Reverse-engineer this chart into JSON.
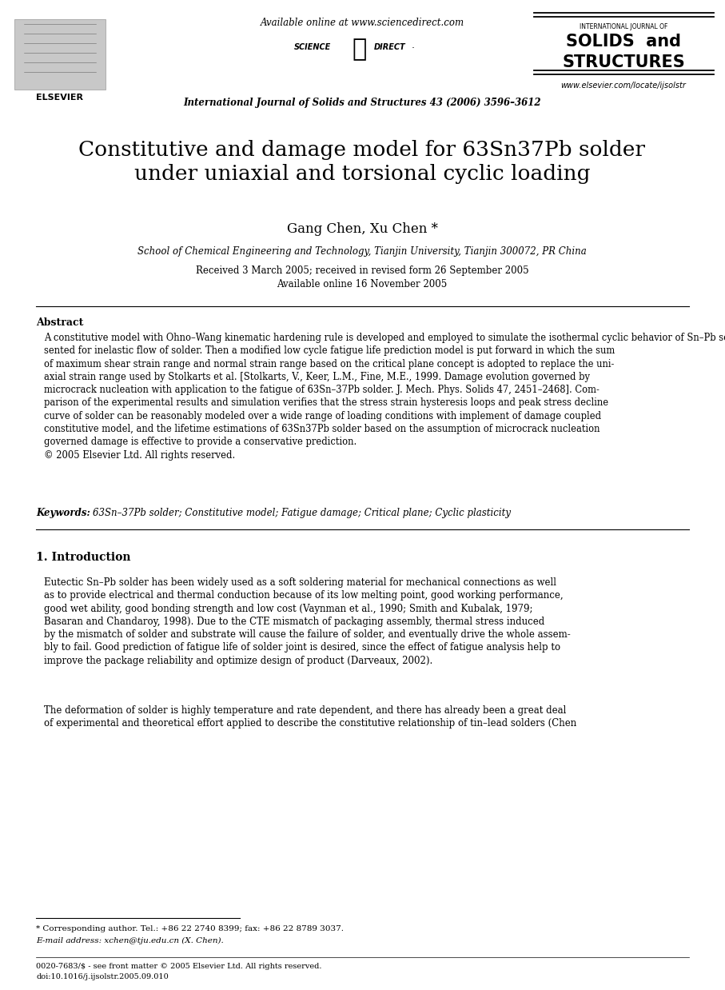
{
  "page_bg": "#ffffff",
  "header": {
    "available_online": "Available online at www.sciencedirect.com",
    "journal_name_center": "International Journal of Solids and Structures 43 (2006) 3596–3612",
    "journal_url": "www.elsevier.com/locate/ijsolstr"
  },
  "title": "Constitutive and damage model for 63Sn37Pb solder\nunder uniaxial and torsional cyclic loading",
  "authors": "Gang Chen, Xu Chen *",
  "affiliation": "School of Chemical Engineering and Technology, Tianjin University, Tianjin 300072, PR China",
  "dates": "Received 3 March 2005; received in revised form 26 September 2005\nAvailable online 16 November 2005",
  "abstract_heading": "Abstract",
  "abstract_text": "A constitutive model with Ohno–Wang kinematic hardening rule is developed and employed to simulate the isothermal cyclic behavior of Sn–Pb solder under uniaxial and torsional loading. An implicit constitutive integration scheme is pre-\nsented for inelastic flow of solder. Then a modified low cycle fatigue life prediction model is put forward in which the sum\nof maximum shear strain range and normal strain range based on the critical plane concept is adopted to replace the uni-\naxial strain range used by Stolkarts et al. [Stolkarts, V., Keer, L.M., Fine, M.E., 1999. Damage evolution governed by\nmicrocrack nucleation with application to the fatigue of 63Sn–37Pb solder. J. Mech. Phys. Solids 47, 2451–2468]. Com-\nparison of the experimental results and simulation verifies that the stress strain hysteresis loops and peak stress decline\ncurve of solder can be reasonably modeled over a wide range of loading conditions with implement of damage coupled\nconstitutive model, and the lifetime estimations of 63Sn37Pb solder based on the assumption of microcrack nucleation\ngoverned damage is effective to provide a conservative prediction.\n© 2005 Elsevier Ltd. All rights reserved.",
  "keywords_label": "Keywords:",
  "keywords_text": "63Sn–37Pb solder; Constitutive model; Fatigue damage; Critical plane; Cyclic plasticity",
  "section1_heading": "1. Introduction",
  "intro_p1_plain": "Eutectic Sn–Pb solder has been widely used as a soft soldering material for mechanical connections as well\nas to provide electrical and thermal conduction because of its low melting point, good working performance,\ngood wet ability, good bonding strength and low cost ",
  "intro_p1_ref1": "(Vaynman et al., 1990; Smith and Kubalak, 1979;\nBasaran and Chandaroy, 1998)",
  "intro_p1_mid": ". Due to the CTE mismatch of packaging assembly, thermal stress induced\nby the mismatch of solder and substrate will cause the failure of solder, and eventually drive the whole assem-\nbly to fail. Good prediction of fatigue life of solder joint is desired, since the effect of fatigue analysis help to\nimprove the package reliability and optimize design of product ",
  "intro_p1_ref2": "(Darveaux, 2002)",
  "intro_p1_end": ".",
  "intro_p2": "The deformation of solder is highly temperature and rate dependent, and there has already been a great deal\nof experimental and theoretical effort applied to describe the constitutive relationship of tin–lead solders (Chen",
  "footnote_star": "* Corresponding author. Tel.: +86 22 2740 8399; fax: +86 22 8789 3037.",
  "footnote_email": "E-mail address: xchen@tju.edu.cn (X. Chen).",
  "footer_line1": "0020-7683/$ - see front matter © 2005 Elsevier Ltd. All rights reserved.",
  "footer_line2": "doi:10.1016/j.ijsolstr.2005.09.010"
}
